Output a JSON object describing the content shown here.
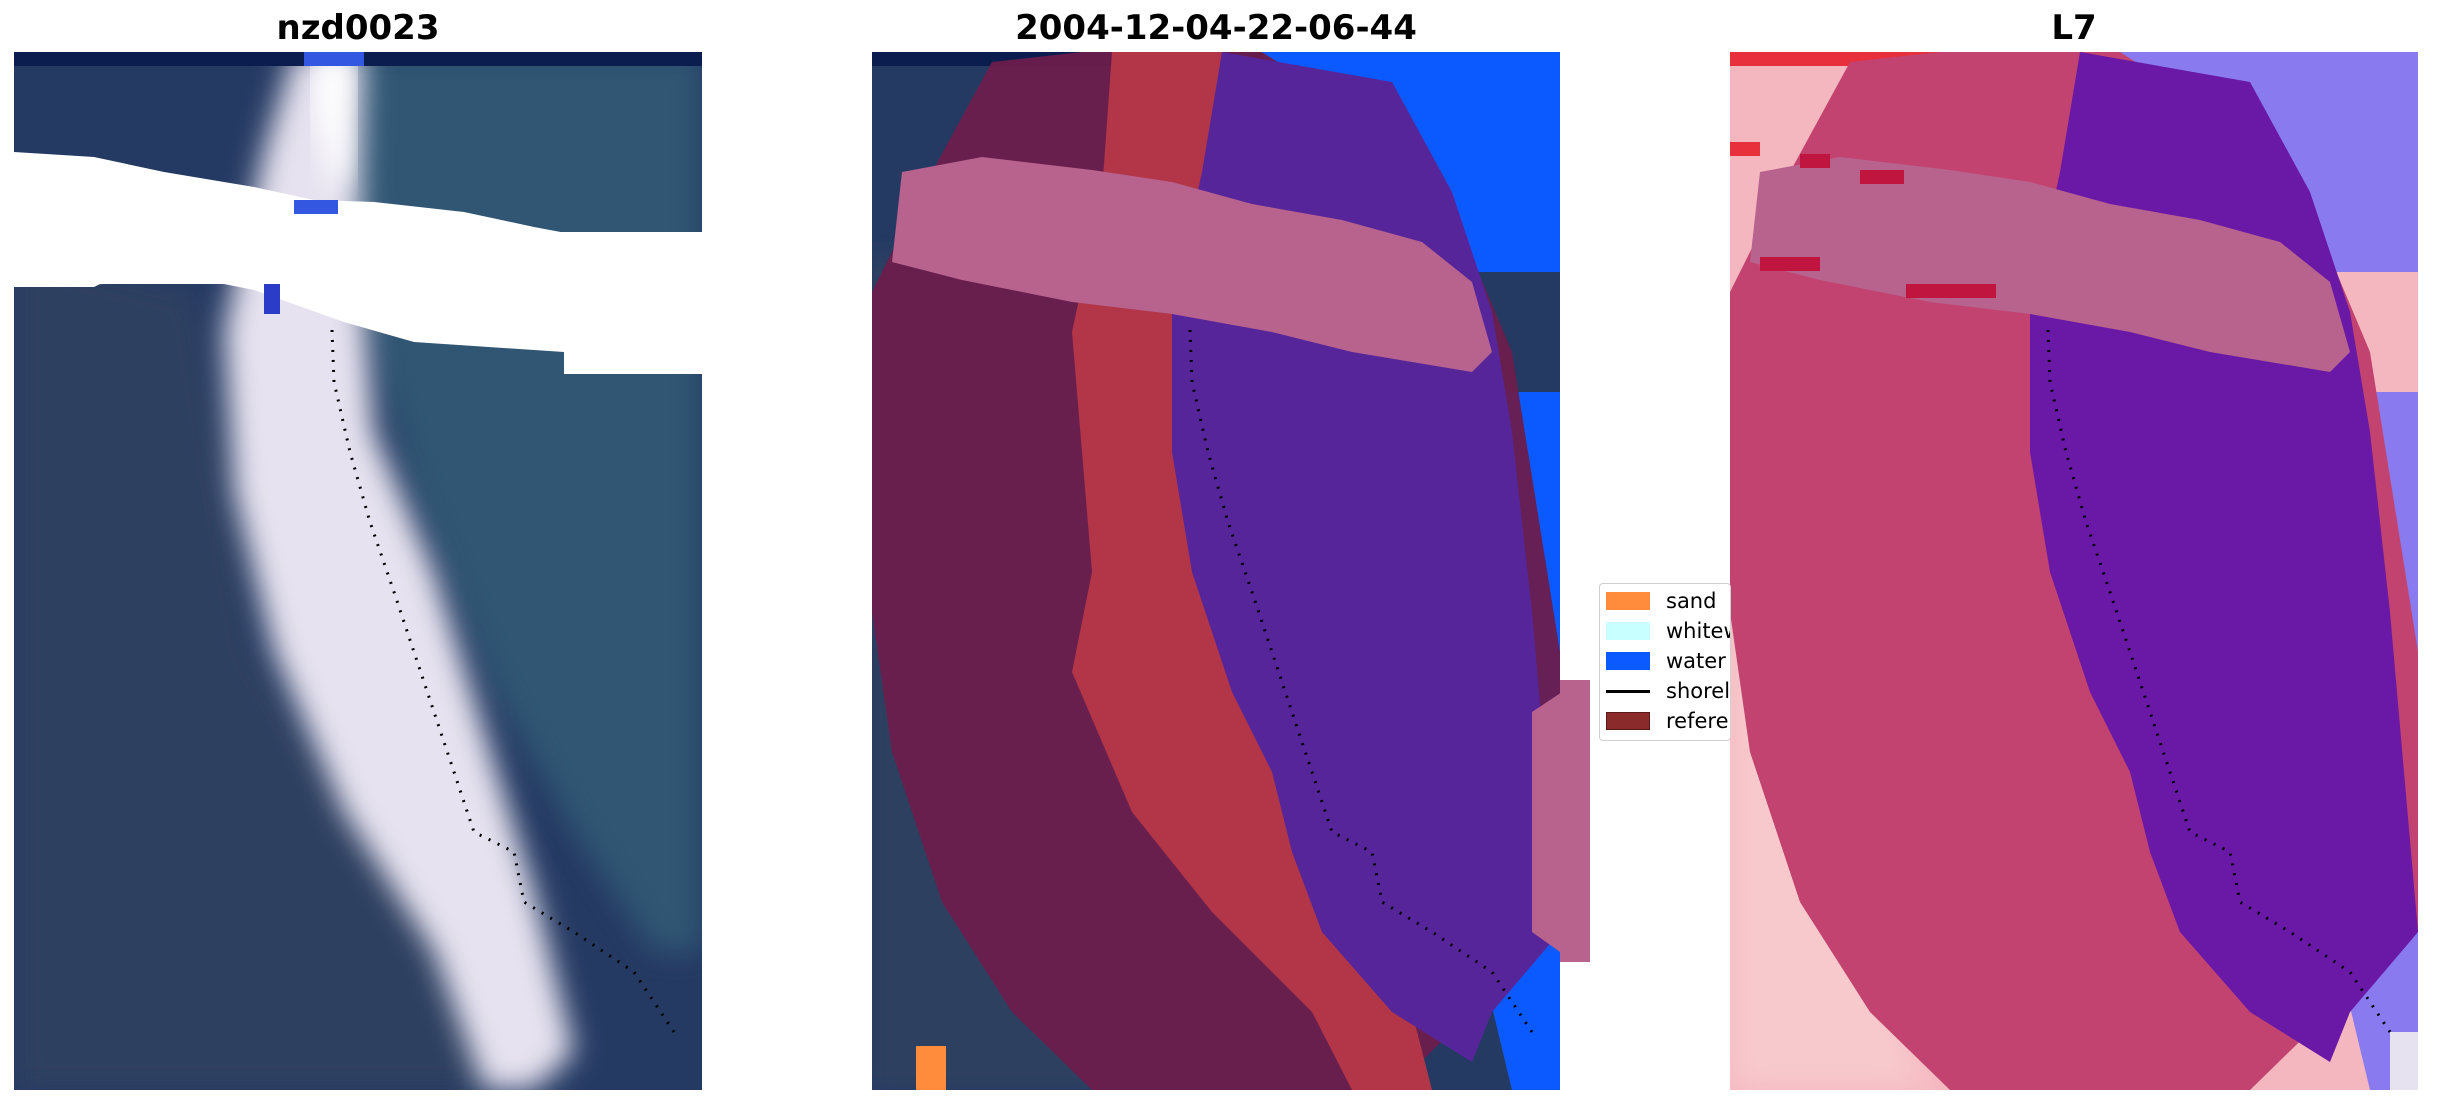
{
  "panels": [
    {
      "title": "nzd0023"
    },
    {
      "title": "2004-12-04-22-06-44"
    },
    {
      "title": "L7"
    }
  ],
  "legend": {
    "items": [
      {
        "label": "sand",
        "color": "#ff8c3c"
      },
      {
        "label": "whitewater",
        "color": "#c8ffff"
      },
      {
        "label": "water",
        "color": "#0a5aff"
      },
      {
        "label": "shoreline",
        "color": "#000000"
      },
      {
        "label": "reference",
        "color": "#8a2a2a"
      }
    ]
  },
  "colors": {
    "dark_water": "#253a63",
    "sea_teal": "#36627a",
    "beach_white": "#e6e2ef",
    "land_dark": "#28395a",
    "class_water": "#0a5aff",
    "class_other": "#6b1d4c",
    "class_sand_red": "#b23548",
    "class_purple": "#56259a",
    "class_pink": "#b8628e",
    "index_pink": "#c2436f",
    "index_light": "#f7c9cd",
    "index_purple": "#6a19a6"
  }
}
